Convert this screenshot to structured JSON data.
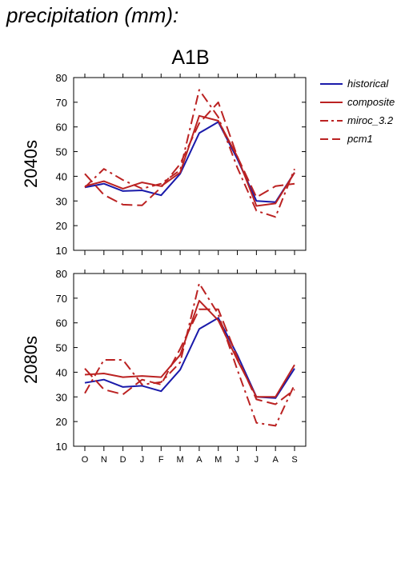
{
  "page_title": "precipitation (mm):",
  "chart_data": {
    "type": "line",
    "title": "A1B",
    "months": [
      "O",
      "N",
      "D",
      "J",
      "F",
      "M",
      "A",
      "M",
      "J",
      "J",
      "A",
      "S"
    ],
    "ylim": [
      10,
      80
    ],
    "yticks": [
      10,
      20,
      30,
      40,
      50,
      60,
      70,
      80
    ],
    "legend_position": "right",
    "legend": [
      {
        "key": "historical",
        "label": "historical",
        "color": "#1a1aaa",
        "dash": "solid"
      },
      {
        "key": "composite",
        "label": "composite",
        "color": "#bb2222",
        "dash": "solid"
      },
      {
        "key": "miroc",
        "label": "miroc_3.2",
        "color": "#bb2222",
        "dash": "dashdot"
      },
      {
        "key": "pcm1",
        "label": "pcm1",
        "color": "#bb2222",
        "dash": "dashed"
      }
    ],
    "panels": [
      {
        "label": "2040s",
        "series": {
          "historical": [
            35.5,
            37,
            34,
            34.3,
            32.3,
            41,
            57.5,
            62,
            47,
            30,
            29.5,
            41.5
          ],
          "composite": [
            36,
            38,
            35,
            37.5,
            36,
            41.5,
            64.5,
            62.5,
            48,
            28,
            29,
            41.5
          ],
          "miroc": [
            35.5,
            43,
            38.5,
            35,
            37,
            42.5,
            75,
            64,
            43.5,
            26,
            23.5,
            43
          ],
          "pcm1": [
            41,
            32.5,
            28.5,
            28.2,
            35.5,
            45,
            61.5,
            70,
            48,
            31.5,
            36,
            37
          ]
        }
      },
      {
        "label": "2080s",
        "series": {
          "historical": [
            35.7,
            37,
            34,
            34.5,
            32.3,
            41,
            57.5,
            62,
            47,
            30,
            29.5,
            41.5
          ],
          "composite": [
            39,
            39.5,
            38,
            38.5,
            38,
            47,
            69,
            61,
            45,
            30,
            30,
            43
          ],
          "miroc": [
            31.5,
            45,
            45,
            35,
            36,
            44,
            76,
            63.5,
            41,
            19.5,
            18.3,
            35
          ],
          "pcm1": [
            41.5,
            33,
            31,
            37,
            35,
            49.5,
            65.5,
            65.5,
            46,
            29,
            27,
            33
          ]
        }
      }
    ]
  }
}
